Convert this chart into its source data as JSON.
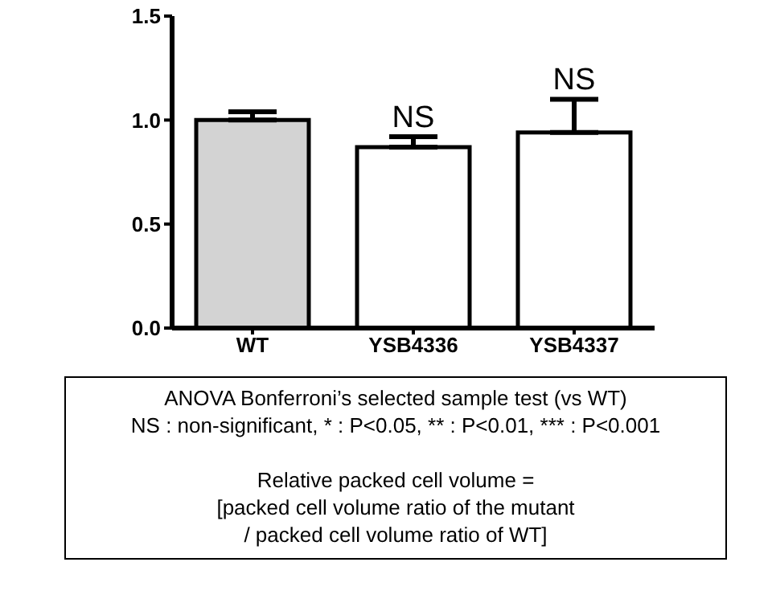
{
  "chart_data": {
    "type": "bar",
    "categories": [
      "WT",
      "YSB4336",
      "YSB4337"
    ],
    "series": [
      {
        "values": [
          1.0,
          0.87,
          0.94
        ],
        "colors": [
          "#d3d3d3",
          "#ffffff",
          "#ffffff"
        ],
        "errors": [
          [
            1.0,
            1.04
          ],
          [
            0.87,
            0.92
          ],
          [
            0.94,
            1.1
          ]
        ]
      }
    ],
    "ylim": [
      0,
      1.5
    ],
    "yticks": [
      {
        "value": 0,
        "label": "0.0"
      },
      {
        "value": 0.5,
        "label": "0.5"
      },
      {
        "value": 1,
        "label": "1.0"
      },
      {
        "value": 1.5,
        "label": "1.5"
      }
    ],
    "grid": false,
    "legend": false,
    "annotations": [
      {
        "text": "NS",
        "x": "YSB4336",
        "y": 0.92
      },
      {
        "text": "NS",
        "x": "YSB4337",
        "y": 1.1
      },
      "ANOVA Bonferroni’s selected sample test (vs WT)",
      "NS : non-significant, * : P<0.05, ** : P<0.01, *** : P<0.001",
      "Relative packed cell volume =",
      "[packed cell volume ratio of the mutant",
      "/ packed cell volume ratio of WT]"
    ]
  }
}
